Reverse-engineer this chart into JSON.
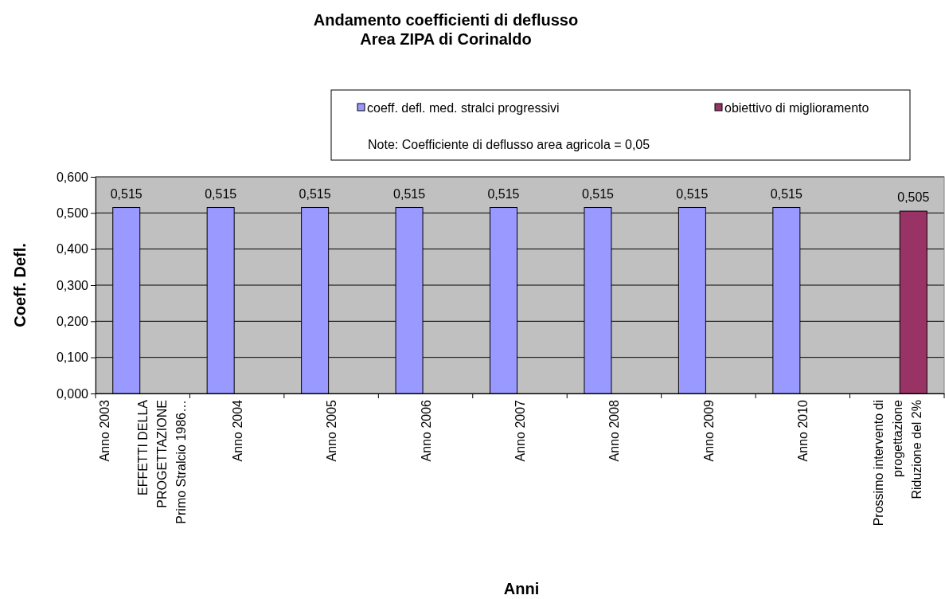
{
  "chart_data": {
    "type": "bar",
    "title": "Andamento coefficienti di deflusso\nArea ZIPA di Corinaldo",
    "xlabel": "Anni",
    "ylabel": "Coeff. Defl.",
    "categories": [
      "Anno 2003\n\nEFFETTI DELLA\nPROGETTAZIONE\nPrimo Stralcio 1986…",
      "Anno 2004",
      "Anno 2005",
      "Anno 2006",
      "Anno 2007",
      "Anno 2008",
      "Anno 2009",
      "Anno 2010",
      "Prossimo intervento di\nprogettazione\nRiduzione del 2%"
    ],
    "series": [
      {
        "name": "coeff. defl. med. stralci progressivi",
        "color": "#9999ff",
        "values": [
          0.515,
          0.515,
          0.515,
          0.515,
          0.515,
          0.515,
          0.515,
          0.515,
          null
        ],
        "value_labels": [
          "0,515",
          "0,515",
          "0,515",
          "0,515",
          "0,515",
          "0,515",
          "0,515",
          "0,515",
          null
        ]
      },
      {
        "name": "obiettivo di miglioramento",
        "color": "#993366",
        "values": [
          null,
          null,
          null,
          null,
          null,
          null,
          null,
          null,
          0.505
        ],
        "value_labels": [
          null,
          null,
          null,
          null,
          null,
          null,
          null,
          null,
          "0,505"
        ]
      }
    ],
    "annotations": [
      "Note: Coefficiente di deflusso area agricola = 0,05"
    ],
    "ylim": [
      0,
      0.6
    ],
    "yticks": [
      {
        "value": 0,
        "label": "0,000"
      },
      {
        "value": 0.1,
        "label": "0,100"
      },
      {
        "value": 0.2,
        "label": "0,200"
      },
      {
        "value": 0.3,
        "label": "0,300"
      },
      {
        "value": 0.4,
        "label": "0,400"
      },
      {
        "value": 0.5,
        "label": "0,500"
      },
      {
        "value": 0.6,
        "label": "0,600"
      }
    ],
    "grid": "y",
    "legend": "top right"
  }
}
